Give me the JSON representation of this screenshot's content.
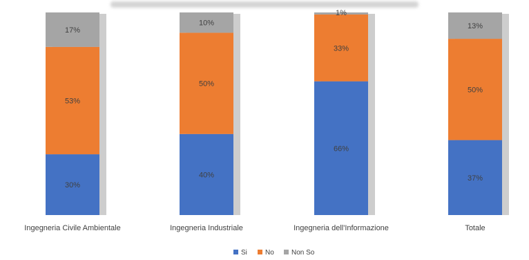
{
  "chart_data": {
    "type": "bar",
    "stacked": true,
    "percent": true,
    "title": "",
    "xlabel": "",
    "ylabel": "",
    "ylim": [
      0,
      100
    ],
    "grid": false,
    "legend_position": "bottom",
    "categories": [
      "Ingegneria Civile Ambientale",
      "Ingegneria Industriale",
      "Ingegneria dell'Informazione",
      "Totale"
    ],
    "series": [
      {
        "name": "Si",
        "color": "#4472C4",
        "values": [
          30,
          40,
          66,
          37
        ],
        "labels": [
          "30%",
          "40%",
          "66%",
          "37%"
        ]
      },
      {
        "name": "No",
        "color": "#ED7D31",
        "values": [
          53,
          50,
          33,
          50
        ],
        "labels": [
          "53%",
          "50%",
          "33%",
          "50%"
        ]
      },
      {
        "name": "Non So",
        "color": "#A5A5A5",
        "values": [
          17,
          10,
          1,
          13
        ],
        "labels": [
          "17%",
          "10%",
          "1%",
          "13%"
        ]
      }
    ]
  }
}
